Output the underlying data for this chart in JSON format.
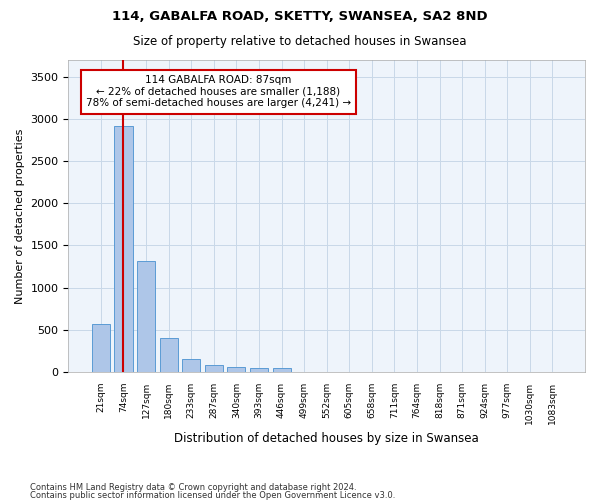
{
  "title": "114, GABALFA ROAD, SKETTY, SWANSEA, SA2 8ND",
  "subtitle": "Size of property relative to detached houses in Swansea",
  "xlabel": "Distribution of detached houses by size in Swansea",
  "ylabel": "Number of detached properties",
  "footnote1": "Contains HM Land Registry data © Crown copyright and database right 2024.",
  "footnote2": "Contains public sector information licensed under the Open Government Licence v3.0.",
  "annotation_line1": "114 GABALFA ROAD: 87sqm",
  "annotation_line2": "← 22% of detached houses are smaller (1,188)",
  "annotation_line3": "78% of semi-detached houses are larger (4,241) →",
  "bar_color": "#aec6e8",
  "bar_edge_color": "#5b9bd5",
  "highlight_color": "#cc0000",
  "grid_color": "#c8d8e8",
  "bg_color": "#eef4fb",
  "bins": [
    "21sqm",
    "74sqm",
    "127sqm",
    "180sqm",
    "233sqm",
    "287sqm",
    "340sqm",
    "393sqm",
    "446sqm",
    "499sqm",
    "552sqm",
    "605sqm",
    "658sqm",
    "711sqm",
    "764sqm",
    "818sqm",
    "871sqm",
    "924sqm",
    "977sqm",
    "1030sqm",
    "1083sqm"
  ],
  "values": [
    570,
    2920,
    1310,
    405,
    155,
    75,
    55,
    50,
    45,
    0,
    0,
    0,
    0,
    0,
    0,
    0,
    0,
    0,
    0,
    0,
    0
  ],
  "property_bin_index": 1,
  "ylim": [
    0,
    3700
  ],
  "yticks": [
    0,
    500,
    1000,
    1500,
    2000,
    2500,
    3000,
    3500
  ]
}
